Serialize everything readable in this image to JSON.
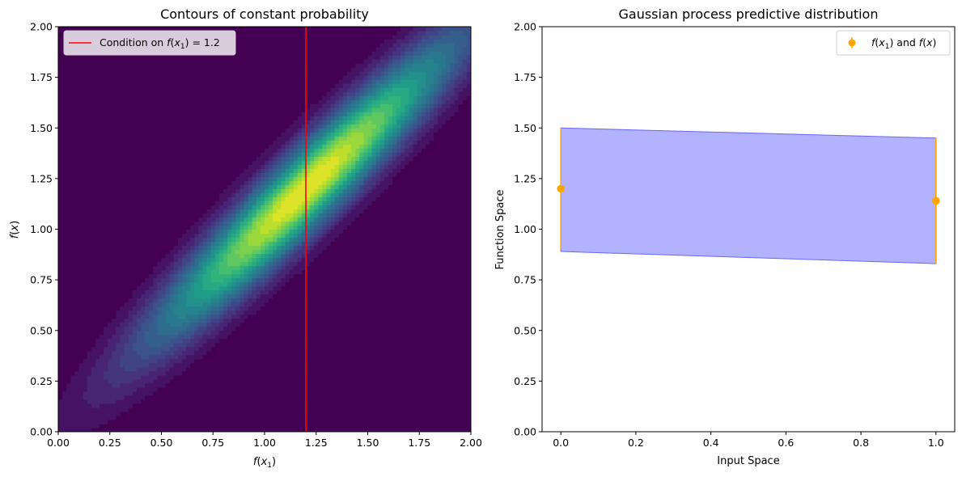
{
  "chart_data": [
    {
      "type": "heatmap",
      "title": "Contours of constant probability",
      "xlabel": "f(x₁)",
      "ylabel": "f(x)",
      "xlim": [
        0,
        2
      ],
      "ylim": [
        0,
        2
      ],
      "xticks": [
        "0.00",
        "0.25",
        "0.50",
        "0.75",
        "1.00",
        "1.25",
        "1.50",
        "1.75",
        "2.00"
      ],
      "yticks": [
        "0.00",
        "0.25",
        "0.50",
        "0.75",
        "1.00",
        "1.25",
        "1.50",
        "1.75",
        "2.00"
      ],
      "distribution": {
        "mean_x": 1.2,
        "mean_y": 1.2,
        "std_x": 0.5,
        "std_y": 0.5,
        "correlation": 0.95
      },
      "colormap": "viridis",
      "condition_line": {
        "x": 1.2,
        "color": "#ff0000",
        "label": "Condition on f(x₁) = 1.2"
      },
      "legend_position": "top-left"
    },
    {
      "type": "scatter",
      "title": "Gaussian process predictive distribution",
      "xlabel": "Input Space",
      "ylabel": "Function Space",
      "xlim": [
        -0.05,
        1.05
      ],
      "ylim": [
        0,
        2
      ],
      "xticks": [
        "0.0",
        "0.2",
        "0.4",
        "0.6",
        "0.8",
        "1.0"
      ],
      "yticks": [
        "0.00",
        "0.25",
        "0.50",
        "0.75",
        "1.00",
        "1.25",
        "1.50",
        "1.75",
        "2.00"
      ],
      "points": [
        {
          "x": 0.0,
          "y": 1.2,
          "lower": 0.9,
          "upper": 1.5
        },
        {
          "x": 1.0,
          "y": 1.14,
          "lower": 0.83,
          "upper": 1.45
        }
      ],
      "band": {
        "x": [
          0.0,
          1.0
        ],
        "lower": [
          0.89,
          0.83
        ],
        "upper": [
          1.5,
          1.45
        ],
        "color": "#6666ff"
      },
      "point_color": "#ffa500",
      "legend": {
        "label": "f(x₁) and f(x)",
        "position": "top-right"
      }
    }
  ]
}
